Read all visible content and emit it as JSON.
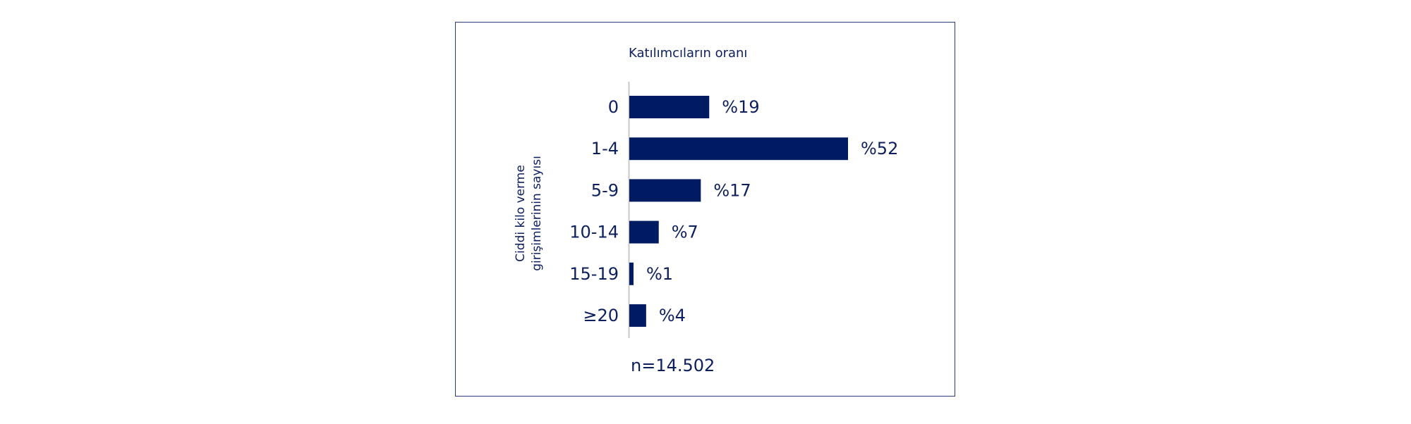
{
  "chart_data": {
    "type": "bar",
    "orientation": "horizontal",
    "top_label": "Katılımcıların oranı",
    "ylabel_lines": [
      "Ciddi kilo verme",
      "girişimlerinin sayısı"
    ],
    "categories": [
      "0",
      "1-4",
      "5-9",
      "10-14",
      "15-19",
      "≥20"
    ],
    "values": [
      19,
      52,
      17,
      7,
      1,
      4
    ],
    "value_labels": [
      "%19",
      "%52",
      "%17",
      "%7",
      "%1",
      "%4"
    ],
    "xlim": [
      0,
      52
    ],
    "grid": false,
    "legend": "none",
    "footnote": "n=14.502",
    "bar_color": "#001b61",
    "axis_color": "#c9c9c9"
  }
}
